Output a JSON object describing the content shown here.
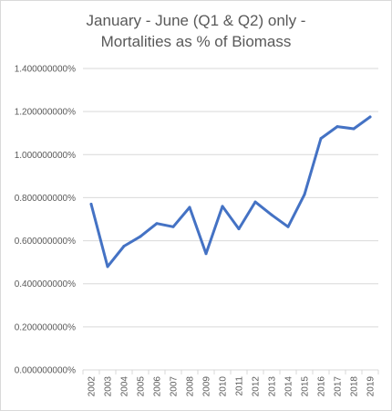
{
  "chart_data": {
    "type": "line",
    "title_lines": [
      "January - June (Q1 & Q2) only -",
      "Mortalities as % of Biomass"
    ],
    "xlabel": "",
    "ylabel": "",
    "ylim": [
      0,
      1.4
    ],
    "y_ticks": [
      0,
      0.2,
      0.4,
      0.6,
      0.8,
      1.0,
      1.2,
      1.4
    ],
    "y_tick_labels": [
      "0.000000000%",
      "0.200000000%",
      "0.400000000%",
      "0.600000000%",
      "0.800000000%",
      "1.000000000%",
      "1.200000000%",
      "1.400000000%"
    ],
    "categories": [
      "2002",
      "2003",
      "2004",
      "2005",
      "2006",
      "2007",
      "2008",
      "2009",
      "2010",
      "2011",
      "2012",
      "2013",
      "2014",
      "2015",
      "2016",
      "2017",
      "2018",
      "2019"
    ],
    "values": [
      0.77,
      0.48,
      0.575,
      0.62,
      0.68,
      0.665,
      0.755,
      0.54,
      0.76,
      0.655,
      0.78,
      0.72,
      0.665,
      0.815,
      1.075,
      1.13,
      1.12,
      1.175
    ],
    "grid": true,
    "legend": "none",
    "line_color": "#4472c4",
    "grid_color": "#d9d9d9"
  }
}
